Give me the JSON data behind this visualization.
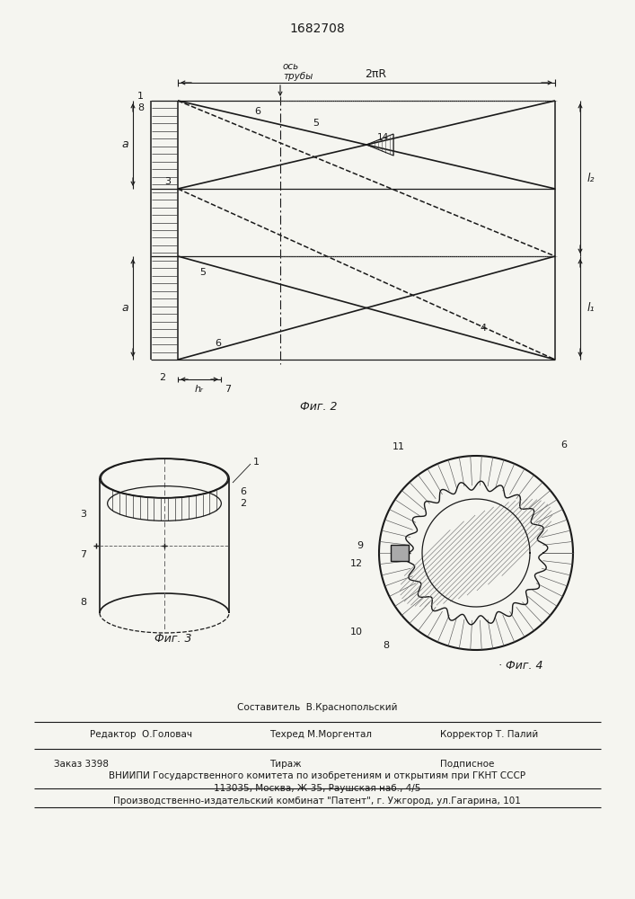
{
  "patent_number": "1682708",
  "bg_color": "#f5f5f0",
  "line_color": "#1a1a1a",
  "fig2_caption": "Τиг. 2",
  "fig3_caption": "Τиг. 3",
  "fig4_caption": "Τиг. 4",
  "label_os_truby": "ось\nтрубы",
  "dim_2piR": "2πR",
  "dim_a": "a",
  "dim_l1": "l₁",
  "dim_l2": "l₂",
  "dim_hr": "hᵣ",
  "footer_sestavitel": "Составитель  В.Краснопольский",
  "footer_redaktor": "Редактор  О.Головач",
  "footer_tehred": "Техред М.Моргентал",
  "footer_korrektor": "Корректор Т. Палий",
  "footer_zakaz": "Заказ 3398",
  "footer_tirazh": "Тираж",
  "footer_podpisnoe": "Подписное",
  "footer_vniipи": "ВНИИПИ Государственного комитета по изобретениям и открытиям при ГКНТ СССР",
  "footer_addr": "113035, Москва, Ж-35, Раушская наб., 4/5",
  "footer_patent": "Производственно-издательский комбинат \"Патент\", г. Ужгород, ул.Гагарина, 101"
}
